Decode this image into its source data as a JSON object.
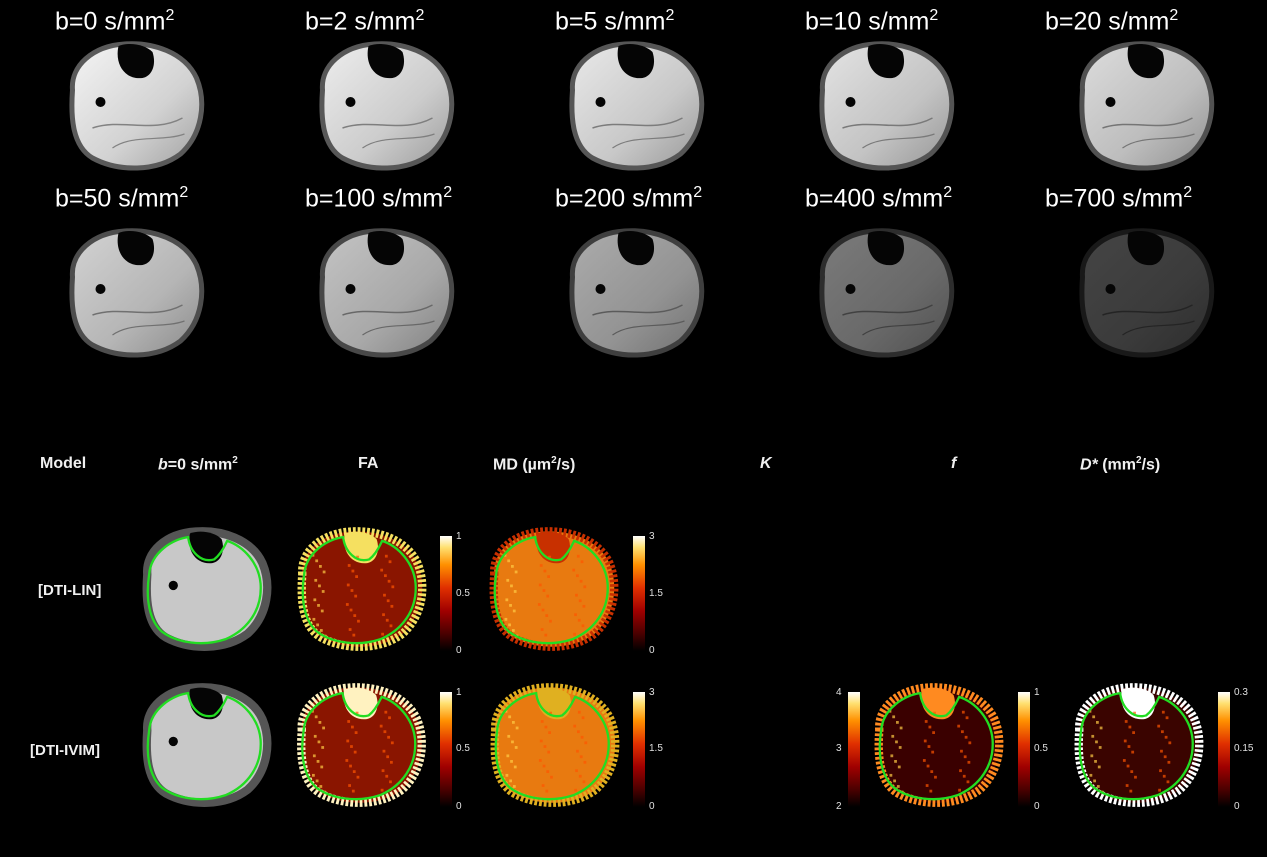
{
  "bvalue_panels": [
    {
      "b_label": "b=0 s/mm",
      "sup": "2",
      "brightness": 1.0
    },
    {
      "b_label": "b=2 s/mm",
      "sup": "2",
      "brightness": 0.97
    },
    {
      "b_label": "b=5 s/mm",
      "sup": "2",
      "brightness": 0.95
    },
    {
      "b_label": "b=10 s/mm",
      "sup": "2",
      "brightness": 0.93
    },
    {
      "b_label": "b=20 s/mm",
      "sup": "2",
      "brightness": 0.9
    },
    {
      "b_label": "b=50 s/mm",
      "sup": "2",
      "brightness": 0.86
    },
    {
      "b_label": "b=100 s/mm",
      "sup": "2",
      "brightness": 0.8
    },
    {
      "b_label": "b=200 s/mm",
      "sup": "2",
      "brightness": 0.7
    },
    {
      "b_label": "b=400 s/mm",
      "sup": "2",
      "brightness": 0.5
    },
    {
      "b_label": "b=700 s/mm",
      "sup": "2",
      "brightness": 0.28
    }
  ],
  "table": {
    "headers": {
      "model": "Model",
      "b0_prefix": "b",
      "b0_rest": "=0 s/mm",
      "b0_sup": "2",
      "fa": "FA",
      "md_prefix": "MD (µm",
      "md_sup": "2",
      "md_suffix": "/s)",
      "k": "K",
      "f": "f",
      "dstar_prefix": "D*",
      "dstar_rest": " (mm",
      "dstar_sup": "2",
      "dstar_suffix": "/s)"
    },
    "rows": [
      {
        "label": "[DTI-LIN]"
      },
      {
        "label": "[DTI-IVIM]"
      }
    ],
    "colorbars": {
      "fa": {
        "top": "1",
        "mid": "0.5",
        "bottom": "0"
      },
      "md": {
        "top": "3",
        "mid": "1.5",
        "bottom": "0"
      },
      "k": {
        "top": "4",
        "mid": "3",
        "bottom": "2"
      },
      "f": {
        "top": "1",
        "mid": "0.5",
        "bottom": "0"
      },
      "dstar": {
        "top": "0.3",
        "mid": "0.15",
        "bottom": "0"
      }
    },
    "colors": {
      "roi_outline": "#22dd22",
      "map_base": "#8a1500",
      "md_base": "#e87a10"
    }
  }
}
